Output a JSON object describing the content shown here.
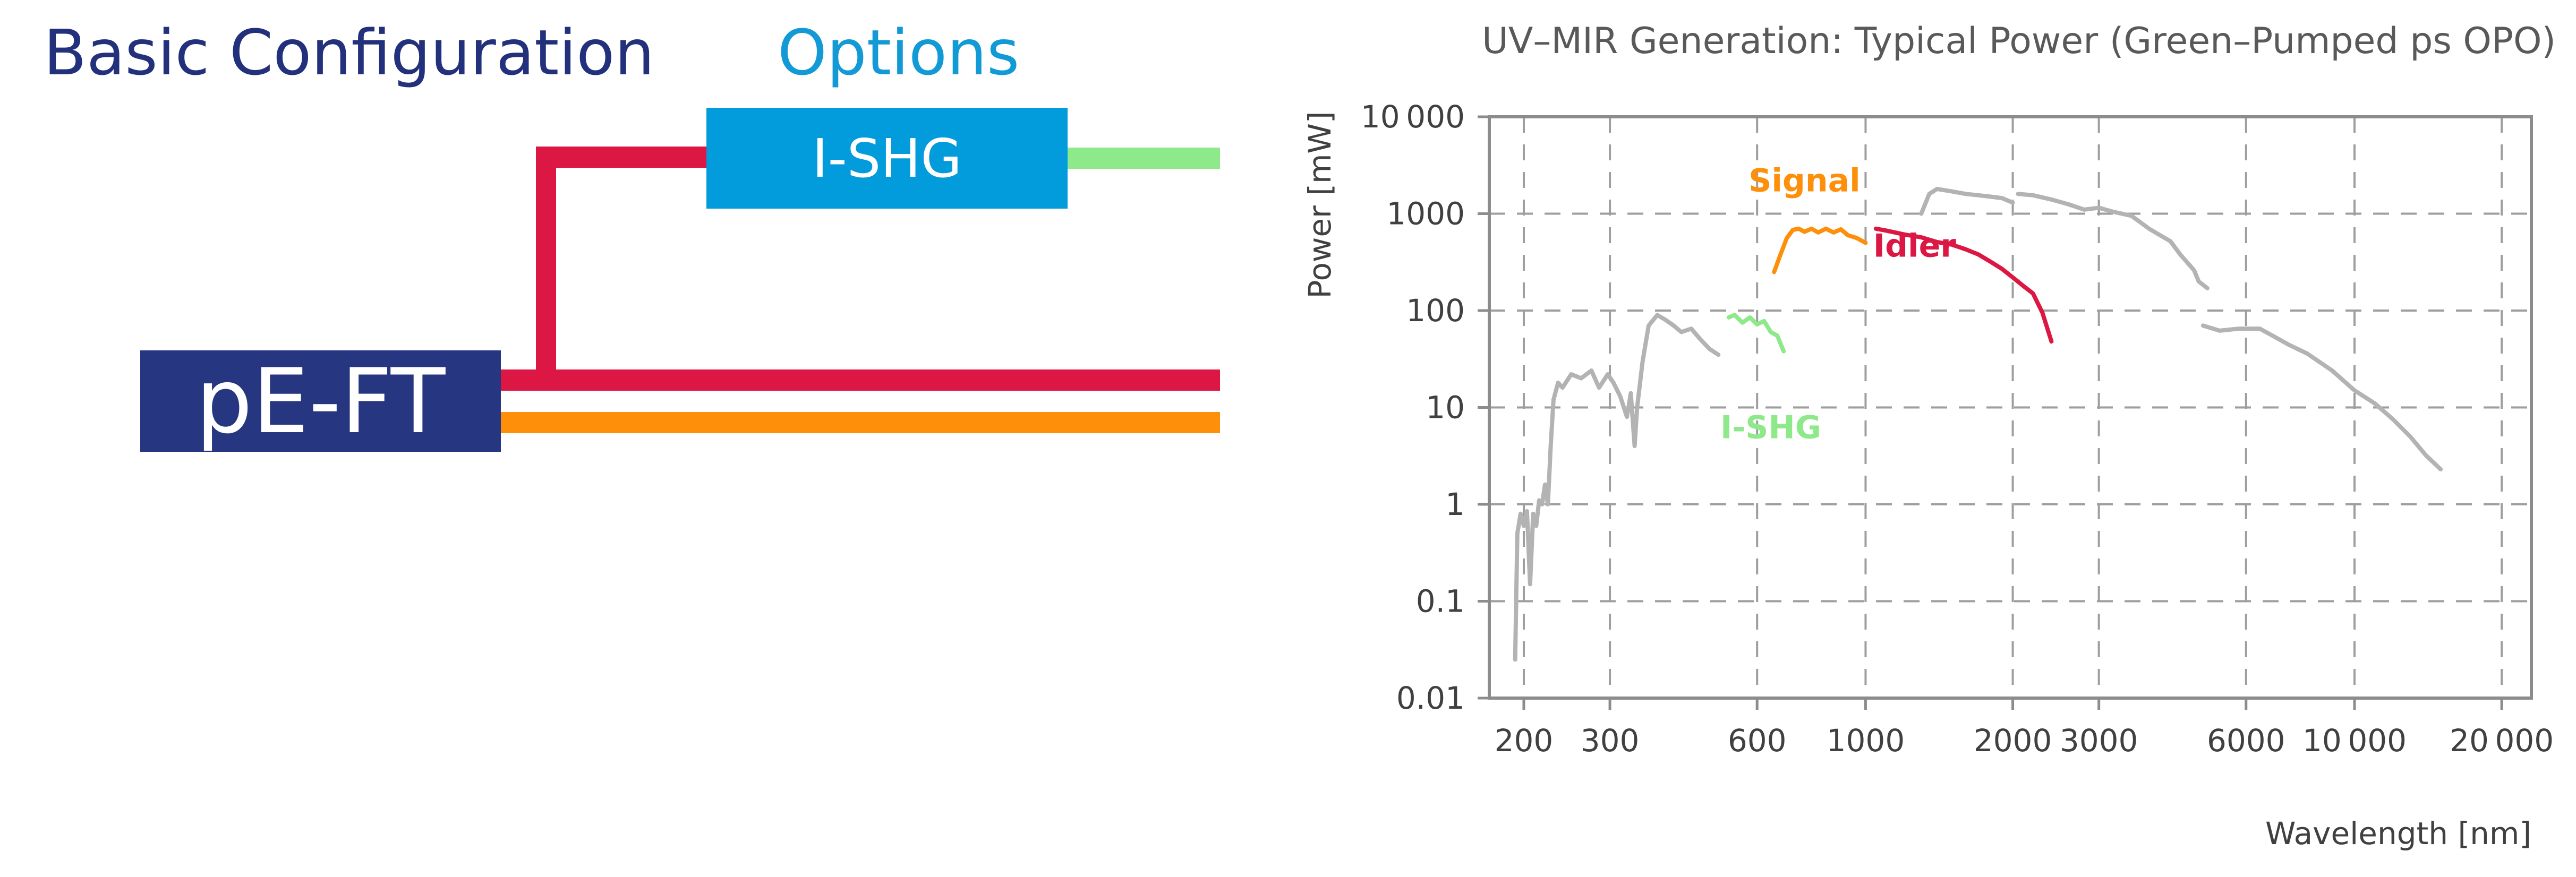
{
  "diagram": {
    "basic_heading": "Basic Configuration",
    "options_heading": "Options",
    "modules": [
      {
        "label": "pE-FT"
      },
      {
        "label": "I-SHG"
      }
    ],
    "colors": {
      "dark_blue": "#273680",
      "light_blue": "#029bdb",
      "signal_orange": "#fd8f0b",
      "idler_red": "#dc1743",
      "ishg_green": "#8ee98a"
    }
  },
  "chart_data": {
    "type": "line",
    "title": "UV–MIR Generation: Typical Power (Green–Pumped ps OPO)",
    "xlabel": "Wavelength [nm]",
    "ylabel": "Power [mW]",
    "xscale": "log",
    "yscale": "log",
    "xlim": [
      170,
      23000
    ],
    "ylim": [
      0.01,
      10000
    ],
    "grid": true,
    "x_ticks": [
      {
        "v": 200,
        "label": "200"
      },
      {
        "v": 300,
        "label": "300"
      },
      {
        "v": 600,
        "label": "600"
      },
      {
        "v": 1000,
        "label": "1000"
      },
      {
        "v": 2000,
        "label": "2000"
      },
      {
        "v": 3000,
        "label": "3000"
      },
      {
        "v": 6000,
        "label": "6000"
      },
      {
        "v": 10000,
        "label": "10 000"
      },
      {
        "v": 20000,
        "label": "20 000"
      }
    ],
    "y_ticks": [
      {
        "v": 0.01,
        "label": "0.01"
      },
      {
        "v": 0.1,
        "label": "0.1"
      },
      {
        "v": 1,
        "label": "1"
      },
      {
        "v": 10,
        "label": "10"
      },
      {
        "v": 100,
        "label": "100"
      },
      {
        "v": 1000,
        "label": "1000"
      },
      {
        "v": 10000,
        "label": "10 000"
      }
    ],
    "series": [
      {
        "name": "Signal",
        "color": "#fd8f0b",
        "x": [
          650,
          670,
          690,
          710,
          730,
          750,
          775,
          800,
          830,
          860,
          890,
          920,
          960,
          1000
        ],
        "y": [
          250,
          380,
          560,
          680,
          700,
          650,
          700,
          640,
          700,
          640,
          690,
          600,
          560,
          500
        ]
      },
      {
        "name": "Idler",
        "color": "#dc1743",
        "x": [
          1050,
          1100,
          1200,
          1300,
          1400,
          1500,
          1600,
          1700,
          1800,
          1900,
          2000,
          2100,
          2200,
          2300,
          2400
        ],
        "y": [
          700,
          670,
          610,
          570,
          510,
          480,
          430,
          380,
          320,
          270,
          220,
          180,
          150,
          95,
          48
        ]
      },
      {
        "name": "I-SHG",
        "color": "#8ee98a",
        "x": [
          525,
          540,
          560,
          580,
          600,
          620,
          640,
          660,
          680
        ],
        "y": [
          85,
          90,
          75,
          85,
          72,
          78,
          60,
          55,
          38
        ]
      },
      {
        "color": "#b3b3b3",
        "x": [
          192,
          194,
          197,
          200,
          203,
          206,
          209,
          212,
          215,
          218,
          221,
          224,
          227,
          230,
          235,
          240,
          250,
          262,
          275,
          285,
          297,
          305,
          315,
          325,
          331,
          337,
          341
        ],
        "y": [
          0.025,
          0.5,
          0.8,
          0.6,
          0.85,
          0.15,
          0.8,
          0.6,
          1.1,
          1.0,
          1.6,
          1.0,
          4.0,
          12,
          18,
          16,
          22,
          20,
          24,
          16,
          22,
          18,
          13,
          8,
          14,
          4,
          10
        ]
      },
      {
        "color": "#b3b3b3",
        "x": [
          341,
          350,
          360,
          375,
          390,
          405,
          420,
          440,
          460,
          480,
          500
        ],
        "y": [
          10,
          30,
          70,
          90,
          80,
          70,
          60,
          65,
          50,
          40,
          35
        ]
      },
      {
        "color": "#b3b3b3",
        "x": [
          1300,
          1350,
          1400,
          1500,
          1600,
          1700,
          1800,
          1900,
          2000
        ],
        "y": [
          1000,
          1600,
          1800,
          1700,
          1600,
          1550,
          1500,
          1450,
          1300
        ]
      },
      {
        "color": "#b3b3b3",
        "x": [
          2050,
          2200,
          2400,
          2600,
          2800,
          3000,
          3200,
          3500,
          3800,
          4000,
          4200,
          4400,
          4700,
          4800,
          5000
        ],
        "y": [
          1600,
          1550,
          1400,
          1250,
          1100,
          1150,
          1050,
          950,
          700,
          600,
          520,
          380,
          260,
          200,
          170
        ]
      },
      {
        "color": "#b3b3b3",
        "x": [
          4900,
          5300,
          5800,
          6400,
          6800,
          7300,
          8000,
          9000,
          10000,
          11000,
          12000,
          13000,
          14000,
          15000
        ],
        "y": [
          70,
          62,
          65,
          65,
          55,
          45,
          36,
          24,
          15,
          11,
          7.5,
          5,
          3.2,
          2.3
        ]
      }
    ],
    "annotations": [
      {
        "text": "Signal",
        "color": "#fd8f0b",
        "x": 750,
        "y": 1700
      },
      {
        "text": "Idler",
        "color": "#dc1743",
        "x": 1260,
        "y": 360
      },
      {
        "text": "I-SHG",
        "color": "#8ee98a",
        "x": 640,
        "y": 4.8
      }
    ]
  }
}
